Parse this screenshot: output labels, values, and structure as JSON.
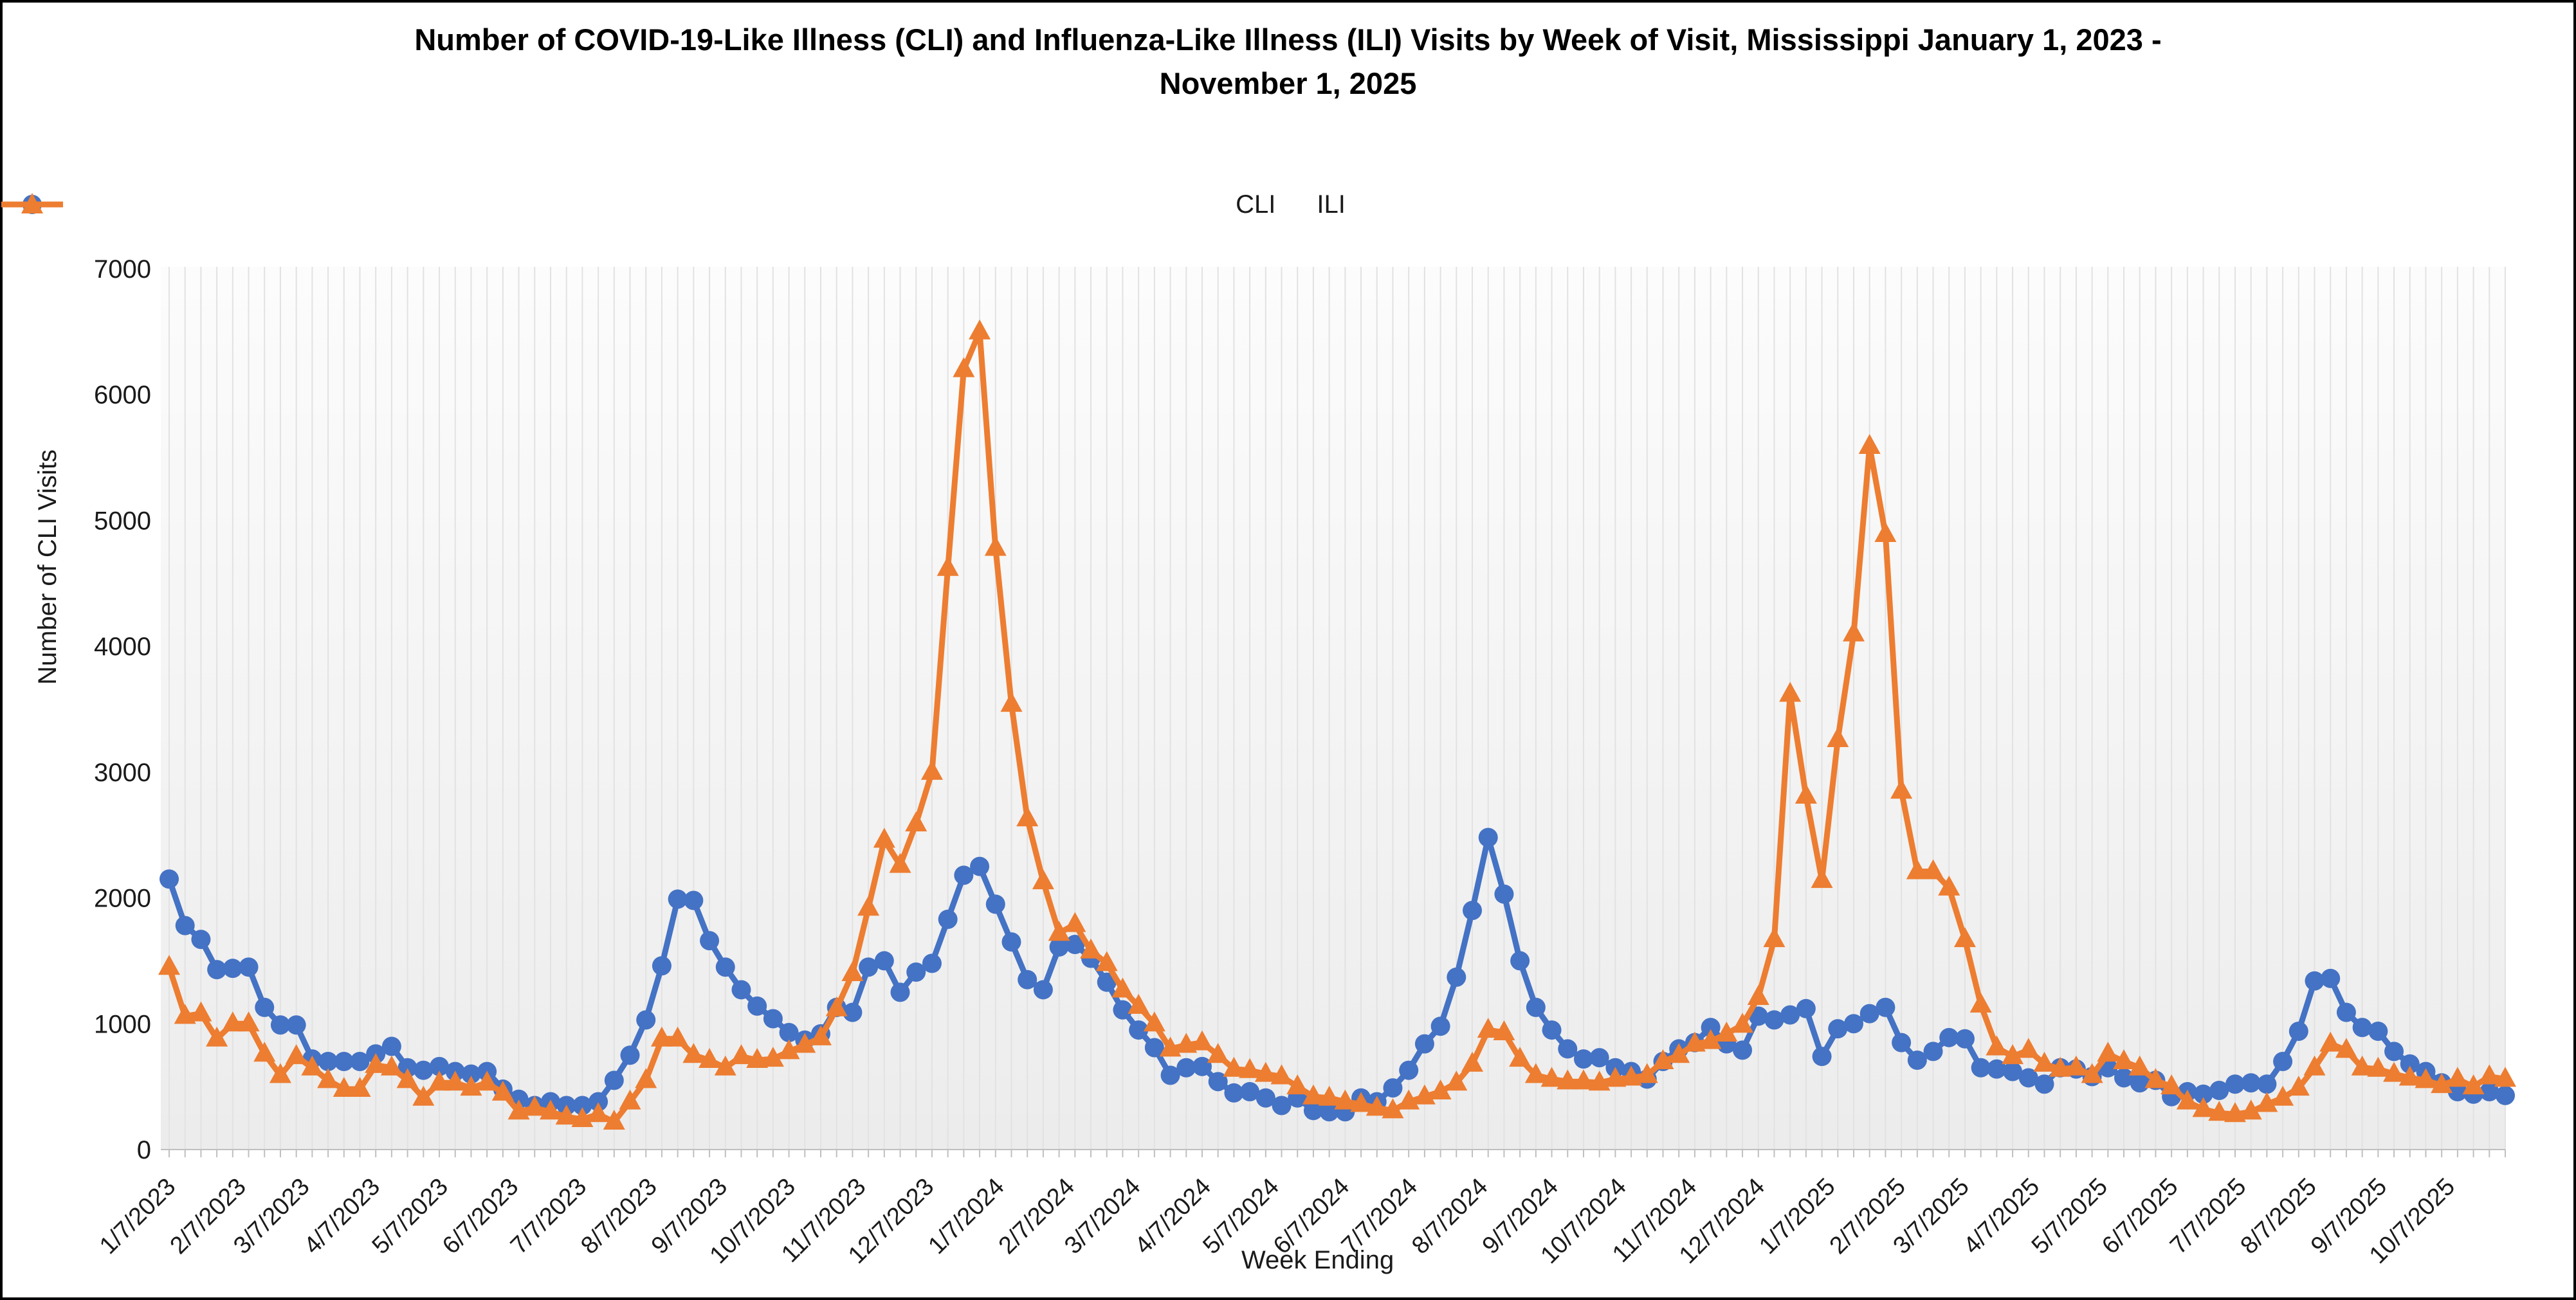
{
  "figure": {
    "title": "Number of COVID-19-Like Illness (CLI) and Influenza-Like Illness (ILI) Visits by Week of Visit, Mississippi January 1, 2023 - November 1, 2025",
    "x_axis_title": "Week Ending",
    "y_axis_title": "Number of CLI Visits"
  },
  "legend": {
    "cli_label": "CLI",
    "ili_label": "ILI"
  },
  "chart_data": {
    "type": "line",
    "title": "Number of COVID-19-Like Illness (CLI) and Influenza-Like Illness (ILI) Visits by Week of Visit, Mississippi January 1, 2023 - November 1, 2025",
    "xlabel": "Week Ending",
    "ylabel": "Number of CLI Visits",
    "ylim": [
      0,
      7000
    ],
    "y_ticks": [
      0,
      1000,
      2000,
      3000,
      4000,
      5000,
      6000,
      7000
    ],
    "frequency": "weekly",
    "start_week_ending": "1/7/2023",
    "end_week_ending": "11/1/2025",
    "grid": "vertical-weekly",
    "legend_position": "top-center",
    "x_tick_labels": [
      "1/7/2023",
      "2/7/2023",
      "3/7/2023",
      "4/7/2023",
      "5/7/2023",
      "6/7/2023",
      "7/7/2023",
      "8/7/2023",
      "9/7/2023",
      "10/7/2023",
      "11/7/2023",
      "12/7/2023",
      "1/7/2024",
      "2/7/2024",
      "3/7/2024",
      "4/7/2024",
      "5/7/2024",
      "6/7/2024",
      "7/7/2024",
      "8/7/2024",
      "9/7/2024",
      "10/7/2024",
      "11/7/2024",
      "12/7/2024",
      "1/7/2025",
      "2/7/2025",
      "3/7/2025",
      "4/7/2025",
      "5/7/2025",
      "6/7/2025",
      "7/7/2025",
      "8/7/2025",
      "9/7/2025",
      "10/7/2025"
    ],
    "series": [
      {
        "name": "CLI",
        "color": "#4472C4",
        "marker": "circle",
        "values": [
          2150,
          1780,
          1670,
          1430,
          1440,
          1450,
          1130,
          990,
          990,
          720,
          700,
          700,
          700,
          760,
          820,
          650,
          630,
          660,
          620,
          600,
          620,
          480,
          400,
          350,
          380,
          350,
          350,
          380,
          550,
          750,
          1030,
          1460,
          1990,
          1980,
          1660,
          1450,
          1270,
          1140,
          1040,
          930,
          870,
          920,
          1130,
          1090,
          1450,
          1500,
          1250,
          1410,
          1480,
          1830,
          2180,
          2250,
          1950,
          1650,
          1350,
          1270,
          1610,
          1630,
          1520,
          1330,
          1110,
          950,
          810,
          590,
          650,
          660,
          540,
          450,
          460,
          410,
          350,
          410,
          310,
          300,
          300,
          410,
          380,
          490,
          630,
          840,
          980,
          1370,
          1900,
          2480,
          2030,
          1500,
          1130,
          950,
          800,
          720,
          730,
          650,
          620,
          560,
          700,
          800,
          850,
          970,
          840,
          790,
          1060,
          1030,
          1070,
          1120,
          740,
          960,
          1000,
          1080,
          1130,
          850,
          710,
          780,
          890,
          880,
          650,
          640,
          620,
          570,
          520,
          650,
          640,
          580,
          650,
          570,
          530,
          550,
          420,
          460,
          440,
          470,
          520,
          530,
          520,
          700,
          940,
          1340,
          1360,
          1090,
          970,
          940,
          780,
          680,
          620,
          530,
          460,
          440,
          460,
          430
        ]
      },
      {
        "name": "ILI",
        "color": "#ED7D31",
        "marker": "triangle",
        "values": [
          1450,
          1060,
          1080,
          880,
          1000,
          1000,
          760,
          590,
          740,
          650,
          550,
          480,
          480,
          670,
          650,
          550,
          410,
          530,
          530,
          490,
          530,
          450,
          300,
          330,
          300,
          260,
          240,
          280,
          220,
          380,
          550,
          880,
          880,
          750,
          710,
          650,
          740,
          710,
          720,
          780,
          830,
          890,
          1120,
          1400,
          1920,
          2460,
          2260,
          2590,
          3000,
          4620,
          6200,
          6500,
          4780,
          3540,
          2630,
          2130,
          1720,
          1790,
          1580,
          1480,
          1270,
          1140,
          1000,
          800,
          830,
          850,
          750,
          640,
          630,
          600,
          580,
          500,
          420,
          410,
          380,
          360,
          330,
          310,
          380,
          420,
          460,
          530,
          680,
          950,
          930,
          720,
          590,
          560,
          540,
          540,
          530,
          560,
          570,
          590,
          700,
          750,
          840,
          860,
          920,
          990,
          1210,
          1670,
          3620,
          2810,
          2140,
          3260,
          4100,
          5590,
          4890,
          2850,
          2210,
          2210,
          2080,
          1670,
          1150,
          810,
          740,
          790,
          680,
          640,
          650,
          590,
          760,
          700,
          650,
          550,
          500,
          380,
          320,
          290,
          280,
          300,
          360,
          410,
          490,
          650,
          840,
          790,
          650,
          640,
          600,
          570,
          550,
          510,
          560,
          500,
          580,
          560
        ]
      }
    ]
  }
}
